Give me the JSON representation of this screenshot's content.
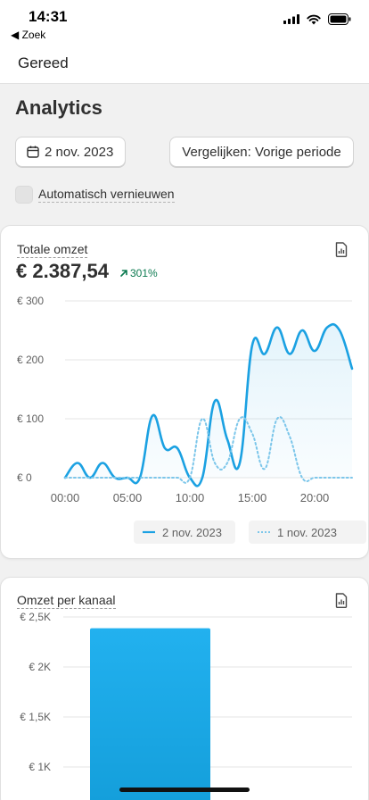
{
  "status_bar": {
    "time": "14:31",
    "back_label": "◀ Zoek"
  },
  "nav": {
    "done_label": "Gereed"
  },
  "page": {
    "title": "Analytics"
  },
  "controls": {
    "date_label": "2 nov. 2023",
    "compare_label": "Vergelijken: Vorige periode",
    "auto_refresh_label": "Automatisch vernieuwen",
    "auto_refresh_checked": false
  },
  "sales_card": {
    "title": "Totale omzet",
    "value": "€ 2.387,54",
    "growth": "301%",
    "legend": {
      "current": "2 nov. 2023",
      "previous": "1 nov. 2023"
    }
  },
  "channel_card": {
    "title": "Omzet per kanaal"
  },
  "colors": {
    "accent": "#1ba1e2",
    "growth": "#0c7a50"
  },
  "chart_data": [
    {
      "type": "line",
      "y_ticks": [
        "€ 0",
        "€ 100",
        "€ 200",
        "€ 300"
      ],
      "x_ticks": [
        "00:00",
        "05:00",
        "10:00",
        "15:00",
        "20:00"
      ],
      "ylim": [
        0,
        300
      ],
      "grid": true,
      "legend_position": "bottom",
      "x": [
        0,
        1,
        2,
        3,
        4,
        5,
        6,
        7,
        8,
        9,
        10,
        11,
        12,
        13,
        14,
        15,
        16,
        17,
        18,
        19,
        20,
        21,
        22,
        23
      ],
      "series": [
        {
          "name": "2 nov. 2023",
          "style": "solid",
          "area": true,
          "values": [
            0,
            25,
            0,
            25,
            0,
            0,
            0,
            105,
            50,
            50,
            0,
            0,
            130,
            65,
            25,
            225,
            210,
            255,
            210,
            250,
            215,
            255,
            250,
            185
          ]
        },
        {
          "name": "1 nov. 2023",
          "style": "dotted",
          "area": false,
          "values": [
            0,
            0,
            0,
            0,
            0,
            0,
            0,
            0,
            0,
            0,
            0,
            100,
            25,
            25,
            100,
            75,
            15,
            100,
            70,
            0,
            0,
            0,
            0,
            0
          ]
        }
      ]
    },
    {
      "type": "bar",
      "y_ticks": [
        "€ 1K",
        "€ 1,5K",
        "€ 2K",
        "€ 2,5K"
      ],
      "ylim": [
        1000,
        2500
      ],
      "grid": true,
      "values": [
        2387.54
      ]
    }
  ]
}
